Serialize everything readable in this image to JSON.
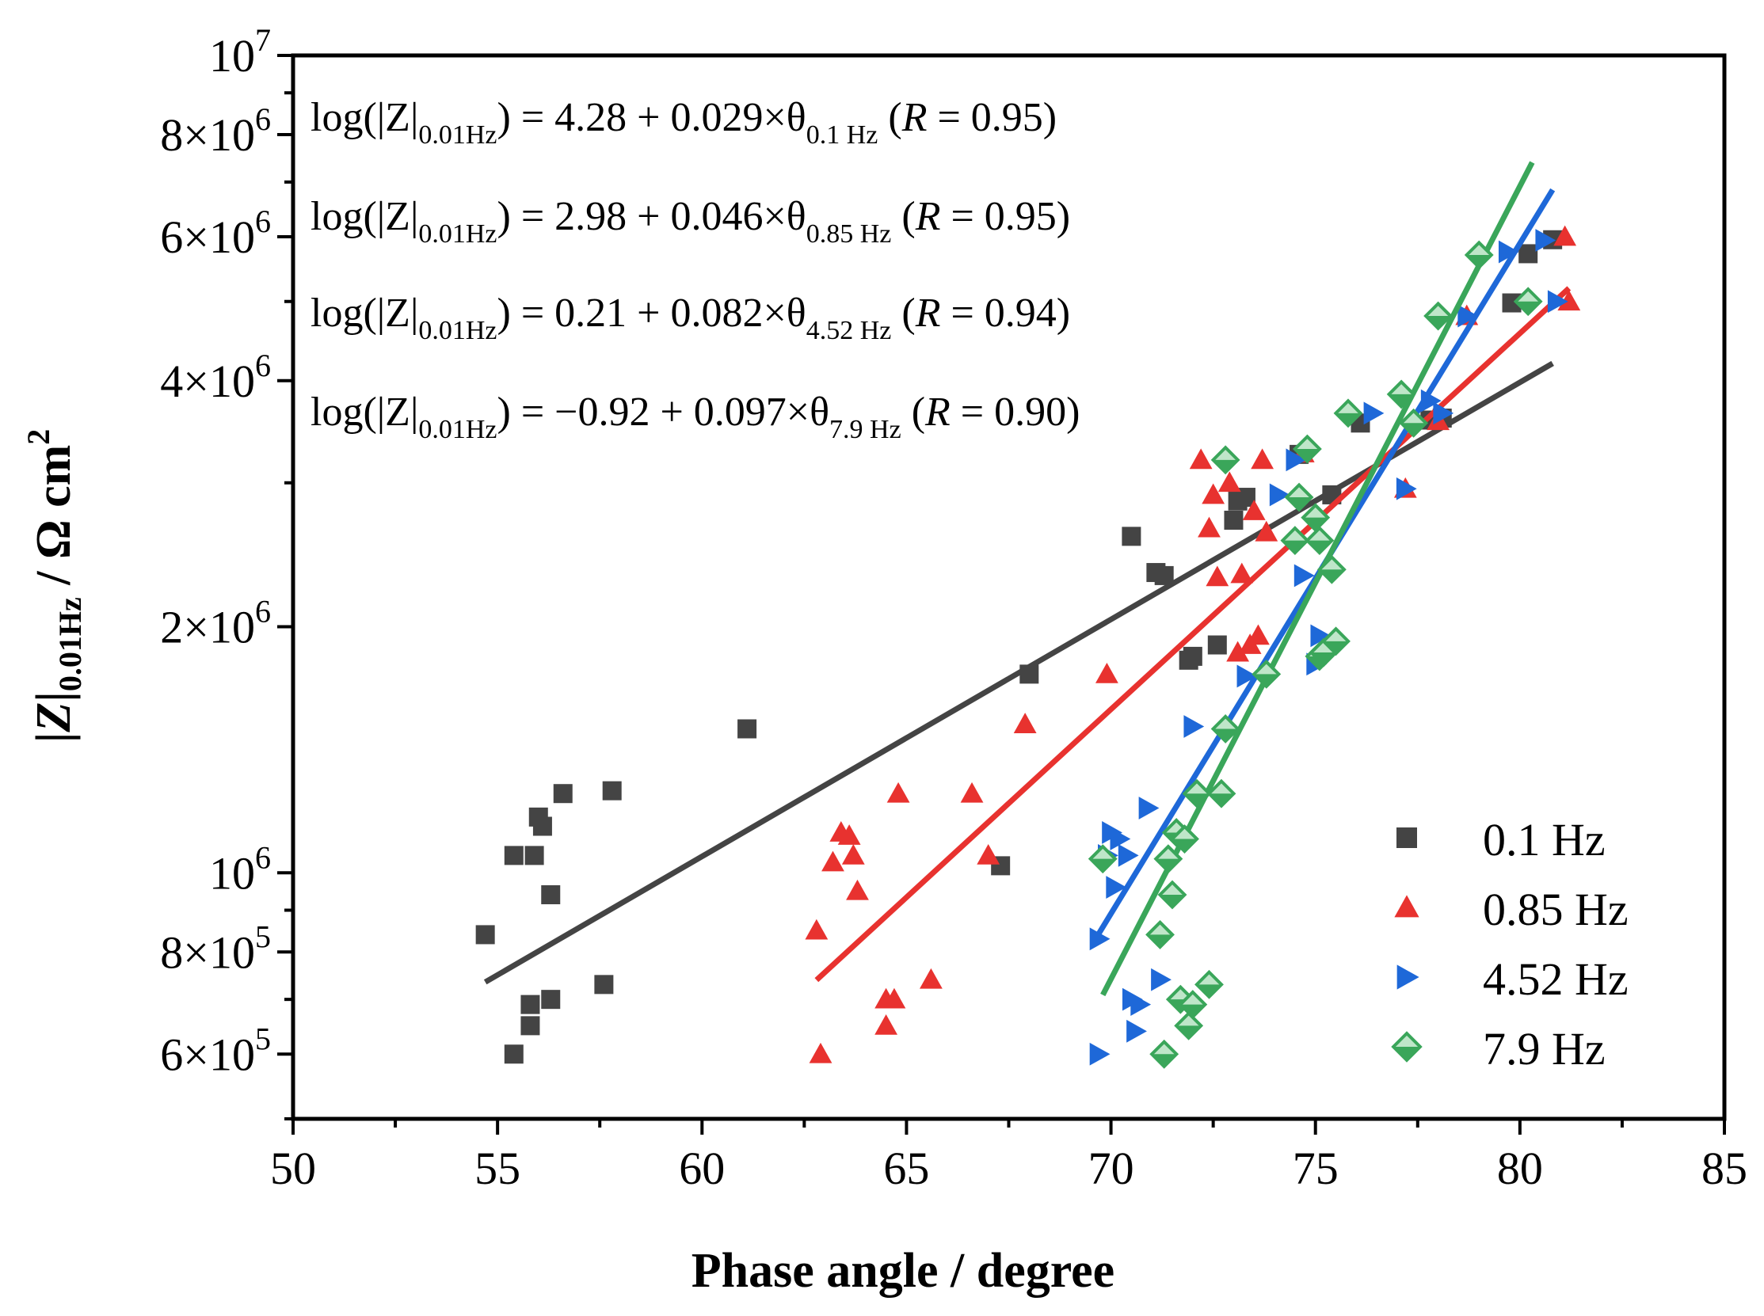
{
  "chart_data": {
    "type": "scatter",
    "xlabel": "Phase angle / degree",
    "ylabel": "|Z|0.01Hz / Ω cm2",
    "xlim": [
      50,
      85
    ],
    "ylim": [
      500000,
      10000000
    ],
    "yscale": "log",
    "x_ticks": [
      50,
      55,
      60,
      65,
      70,
      75,
      80,
      85
    ],
    "y_ticks": [
      {
        "value": 600000,
        "mant": "6×10",
        "exp": "5"
      },
      {
        "value": 800000,
        "mant": "8×10",
        "exp": "5"
      },
      {
        "value": 1000000,
        "mant": "10",
        "exp": "6"
      },
      {
        "value": 2000000,
        "mant": "2×10",
        "exp": "6"
      },
      {
        "value": 4000000,
        "mant": "4×10",
        "exp": "6"
      },
      {
        "value": 6000000,
        "mant": "6×10",
        "exp": "6"
      },
      {
        "value": 8000000,
        "mant": "8×10",
        "exp": "6"
      },
      {
        "value": 10000000,
        "mant": "10",
        "exp": "7"
      }
    ],
    "grid": false,
    "legend_position": "bottom-right",
    "equations": [
      {
        "lhs": "log(|Z|",
        "lhs_sub": "0.01Hz",
        "mid": ") = 4.28 + 0.029×θ",
        "sub": "0.1 Hz",
        "r_open": " (",
        "r_var": "R",
        "r_rest": " = 0.95)"
      },
      {
        "lhs": "log(|Z|",
        "lhs_sub": "0.01Hz",
        "mid": ") = 2.98 + 0.046×θ",
        "sub": "0.85 Hz",
        "r_open": " (",
        "r_var": "R",
        "r_rest": " = 0.95)"
      },
      {
        "lhs": "log(|Z|",
        "lhs_sub": "0.01Hz",
        "mid": ") = 0.21 + 0.082×θ",
        "sub": "4.52 Hz",
        "r_open": " (",
        "r_var": "R",
        "r_rest": " = 0.94)"
      },
      {
        "lhs": "log(|Z|",
        "lhs_sub": "0.01Hz",
        "mid": ") = −0.92 + 0.097×θ",
        "sub": "7.9 Hz",
        "r_open": " (",
        "r_var": "R",
        "r_rest": " = 0.90)"
      }
    ],
    "series": [
      {
        "name": "0.1 Hz",
        "marker": "square",
        "color": "#444444",
        "fit": {
          "intercept": 4.28,
          "slope": 0.029,
          "x_range": [
            54.7,
            80.8
          ]
        },
        "points": [
          [
            54.7,
            840000
          ],
          [
            55.4,
            600000
          ],
          [
            55.4,
            1050000
          ],
          [
            55.8,
            690000
          ],
          [
            55.8,
            650000
          ],
          [
            55.9,
            1050000
          ],
          [
            56.0,
            1170000
          ],
          [
            56.1,
            1140000
          ],
          [
            56.3,
            700000
          ],
          [
            56.3,
            940000
          ],
          [
            56.6,
            1250000
          ],
          [
            57.6,
            730000
          ],
          [
            57.8,
            1260000
          ],
          [
            61.1,
            1500000
          ],
          [
            67.3,
            1020000
          ],
          [
            68.0,
            1750000
          ],
          [
            70.5,
            2580000
          ],
          [
            71.1,
            2330000
          ],
          [
            71.3,
            2310000
          ],
          [
            71.9,
            1820000
          ],
          [
            72.0,
            1840000
          ],
          [
            72.6,
            1900000
          ],
          [
            73.0,
            2700000
          ],
          [
            73.1,
            2850000
          ],
          [
            73.3,
            2880000
          ],
          [
            74.6,
            3250000
          ],
          [
            75.4,
            2900000
          ],
          [
            76.1,
            3550000
          ],
          [
            77.8,
            3580000
          ],
          [
            78.1,
            3600000
          ],
          [
            79.8,
            4980000
          ],
          [
            80.2,
            5720000
          ],
          [
            80.8,
            5950000
          ]
        ]
      },
      {
        "name": "0.85 Hz",
        "marker": "triangle-up",
        "color": "#e8322f",
        "fit": {
          "intercept": 2.98,
          "slope": 0.046,
          "x_range": [
            62.8,
            81.2
          ]
        },
        "points": [
          [
            62.8,
            850000
          ],
          [
            62.9,
            600000
          ],
          [
            63.2,
            1030000
          ],
          [
            63.4,
            1120000
          ],
          [
            63.6,
            1110000
          ],
          [
            63.7,
            1050000
          ],
          [
            63.8,
            950000
          ],
          [
            64.5,
            700000
          ],
          [
            64.5,
            650000
          ],
          [
            64.7,
            700000
          ],
          [
            64.8,
            1250000
          ],
          [
            65.6,
            740000
          ],
          [
            66.6,
            1250000
          ],
          [
            67.0,
            1050000
          ],
          [
            67.9,
            1520000
          ],
          [
            69.9,
            1750000
          ],
          [
            72.2,
            3200000
          ],
          [
            72.4,
            2640000
          ],
          [
            72.5,
            2900000
          ],
          [
            72.6,
            2300000
          ],
          [
            72.9,
            3000000
          ],
          [
            73.1,
            1860000
          ],
          [
            73.2,
            2320000
          ],
          [
            73.4,
            1900000
          ],
          [
            73.5,
            2770000
          ],
          [
            73.6,
            1950000
          ],
          [
            73.7,
            3200000
          ],
          [
            73.8,
            2610000
          ],
          [
            74.7,
            3260000
          ],
          [
            77.2,
            2950000
          ],
          [
            78.0,
            3570000
          ],
          [
            78.7,
            4800000
          ],
          [
            81.1,
            6000000
          ],
          [
            81.2,
            5000000
          ]
        ]
      },
      {
        "name": "4.52 Hz",
        "marker": "triangle-right",
        "color": "#1e68d8",
        "fit": {
          "intercept": 0.21,
          "slope": 0.082,
          "x_range": [
            69.7,
            80.8
          ]
        },
        "points": [
          [
            69.7,
            600000
          ],
          [
            69.7,
            830000
          ],
          [
            69.9,
            1050000
          ],
          [
            70.0,
            1120000
          ],
          [
            70.1,
            960000
          ],
          [
            70.2,
            1100000
          ],
          [
            70.4,
            1050000
          ],
          [
            70.5,
            700000
          ],
          [
            70.6,
            640000
          ],
          [
            70.7,
            690000
          ],
          [
            70.9,
            1200000
          ],
          [
            71.2,
            740000
          ],
          [
            72.0,
            1510000
          ],
          [
            73.3,
            1740000
          ],
          [
            74.1,
            2900000
          ],
          [
            74.5,
            3200000
          ],
          [
            74.7,
            2310000
          ],
          [
            75.0,
            1800000
          ],
          [
            75.1,
            1950000
          ],
          [
            76.4,
            3650000
          ],
          [
            77.2,
            2950000
          ],
          [
            77.8,
            3780000
          ],
          [
            78.1,
            3650000
          ],
          [
            78.7,
            4800000
          ],
          [
            79.7,
            5750000
          ],
          [
            80.6,
            5940000
          ],
          [
            80.9,
            5000000
          ]
        ]
      },
      {
        "name": "7.9 Hz",
        "marker": "diamond",
        "color": "#3aa65a",
        "fit": {
          "intercept": -0.92,
          "slope": 0.097,
          "x_range": [
            69.8,
            80.3
          ]
        },
        "points": [
          [
            69.8,
            1040000
          ],
          [
            71.2,
            840000
          ],
          [
            71.3,
            600000
          ],
          [
            71.4,
            1040000
          ],
          [
            71.5,
            940000
          ],
          [
            71.6,
            1120000
          ],
          [
            71.7,
            700000
          ],
          [
            71.8,
            1100000
          ],
          [
            71.9,
            650000
          ],
          [
            72.0,
            690000
          ],
          [
            72.1,
            1250000
          ],
          [
            72.4,
            730000
          ],
          [
            72.7,
            1250000
          ],
          [
            72.8,
            3200000
          ],
          [
            72.8,
            1500000
          ],
          [
            73.8,
            1750000
          ],
          [
            74.5,
            2550000
          ],
          [
            74.6,
            2880000
          ],
          [
            74.8,
            3300000
          ],
          [
            75.0,
            2720000
          ],
          [
            75.1,
            2550000
          ],
          [
            75.1,
            1840000
          ],
          [
            75.2,
            1860000
          ],
          [
            75.4,
            2350000
          ],
          [
            75.5,
            1920000
          ],
          [
            75.8,
            3650000
          ],
          [
            77.1,
            3850000
          ],
          [
            77.4,
            3550000
          ],
          [
            78.0,
            4800000
          ],
          [
            79.0,
            5700000
          ],
          [
            80.2,
            5000000
          ]
        ]
      }
    ]
  }
}
